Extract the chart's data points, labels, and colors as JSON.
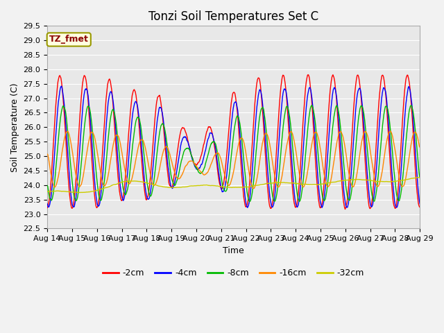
{
  "title": "Tonzi Soil Temperatures Set C",
  "xlabel": "Time",
  "ylabel": "Soil Temperature (C)",
  "ylim": [
    22.5,
    29.5
  ],
  "annotation": "TZ_fmet",
  "annotation_color": "#8B0000",
  "annotation_bg": "#FFFFE0",
  "annotation_border": "#999900",
  "line_colors": {
    "-2cm": "#FF0000",
    "-4cm": "#0000FF",
    "-8cm": "#00BB00",
    "-16cm": "#FF8800",
    "-32cm": "#CCCC00"
  },
  "legend_colors": [
    "#FF0000",
    "#0000FF",
    "#00BB00",
    "#FF8800",
    "#CCCC00"
  ],
  "legend_labels": [
    "-2cm",
    "-4cm",
    "-8cm",
    "-16cm",
    "-32cm"
  ],
  "x_tick_labels": [
    "Aug 14",
    "Aug 15",
    "Aug 16",
    "Aug 17",
    "Aug 18",
    "Aug 19",
    "Aug 20",
    "Aug 21",
    "Aug 22",
    "Aug 23",
    "Aug 24",
    "Aug 25",
    "Aug 26",
    "Aug 27",
    "Aug 28",
    "Aug 29"
  ],
  "bg_color": "#E8E8E8",
  "grid_color": "#FFFFFF",
  "title_fontsize": 12,
  "axis_fontsize": 9,
  "tick_fontsize": 8
}
